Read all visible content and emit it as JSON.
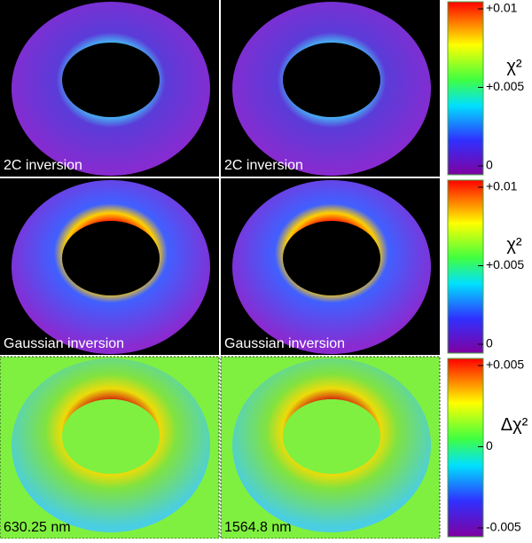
{
  "panels": [
    {
      "label": "2C inversion"
    },
    {
      "label": "2C inversion"
    },
    {
      "label": "Gaussian inversion"
    },
    {
      "label": "Gaussian inversion"
    },
    {
      "label": "630.25 nm"
    },
    {
      "label": "1564.8 nm"
    }
  ],
  "colorbars": [
    {
      "label": "χ²",
      "lim": [
        0,
        0.01
      ],
      "ticks": [
        {
          "value": 0.01,
          "label": "+0.01"
        },
        {
          "value": 0.005,
          "label": "+0.005"
        },
        0
      ]
    },
    {
      "label": "χ²",
      "lim": [
        0,
        0.01
      ],
      "ticks": [
        {
          "value": 0.01,
          "label": "+0.01"
        },
        {
          "value": 0.005,
          "label": "+0.005"
        },
        0
      ]
    },
    {
      "label": "Δχ²",
      "lim": [
        -0.005,
        0.005
      ],
      "ticks": [
        {
          "value": 0.005,
          "label": "+0.005"
        },
        0,
        {
          "value": -0.005,
          "label": "-0.005"
        }
      ]
    }
  ]
}
